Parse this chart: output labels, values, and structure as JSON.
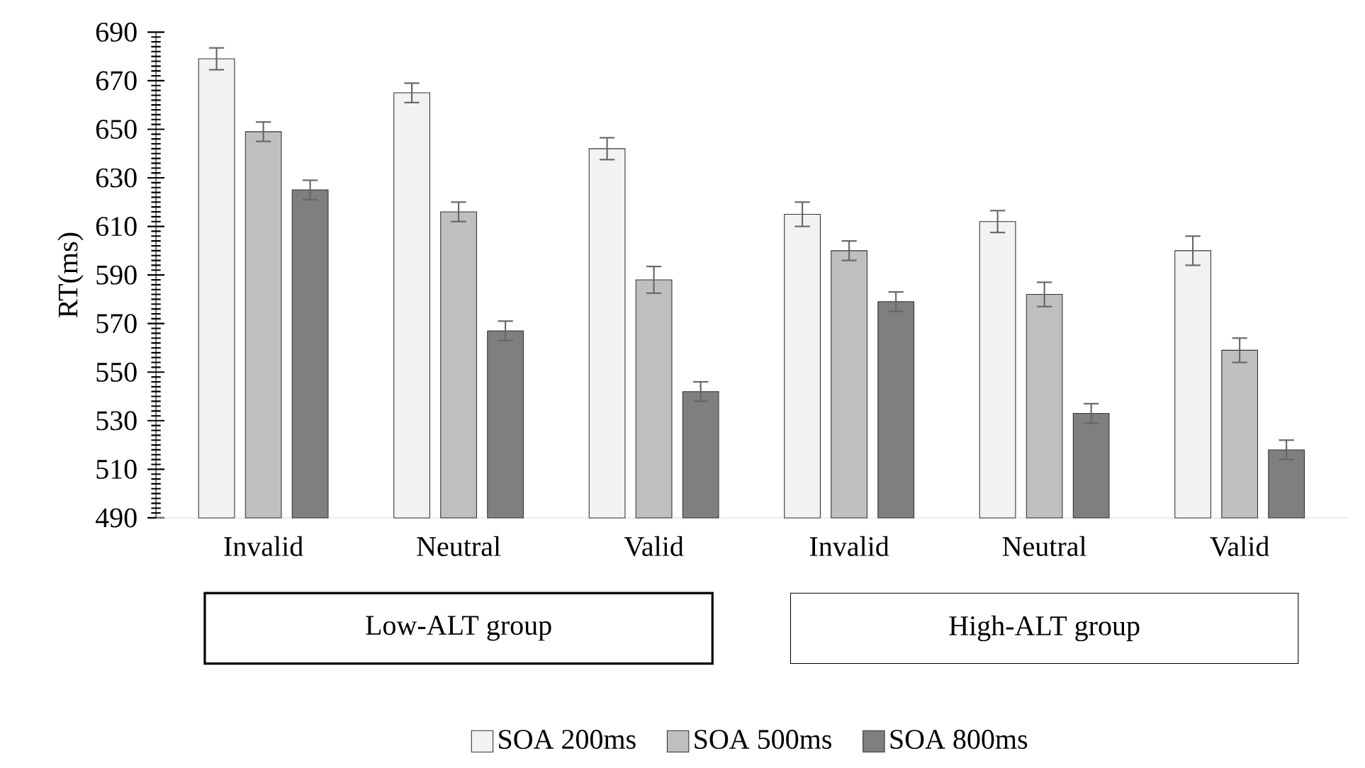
{
  "chart_data": {
    "type": "bar",
    "ylabel": "RT(ms)",
    "categories": [
      "Invalid",
      "Neutral",
      "Valid",
      "Invalid",
      "Neutral",
      "Valid"
    ],
    "series": [
      {
        "name": "SOA 200ms",
        "color": "#f2f2f2",
        "values": [
          679,
          665,
          642,
          615,
          612,
          600
        ],
        "errors": [
          4.5,
          4,
          4.5,
          5,
          4.5,
          6
        ]
      },
      {
        "name": "SOA 500ms",
        "color": "#bfbfbf",
        "values": [
          649,
          616,
          588,
          600,
          582,
          559
        ],
        "errors": [
          4,
          4,
          5.5,
          4,
          5,
          5
        ]
      },
      {
        "name": "SOA 800ms",
        "color": "#7f7f7f",
        "values": [
          625,
          567,
          542,
          579,
          533,
          518
        ],
        "errors": [
          4,
          4,
          4,
          4,
          4,
          4
        ]
      }
    ],
    "ylim": [
      490,
      690
    ],
    "yticks": [
      490,
      510,
      530,
      550,
      570,
      590,
      610,
      630,
      650,
      670,
      690
    ],
    "annotations": [
      "Low-ALT group",
      "High-ALT group"
    ],
    "grid": false,
    "legend": "bottom"
  }
}
